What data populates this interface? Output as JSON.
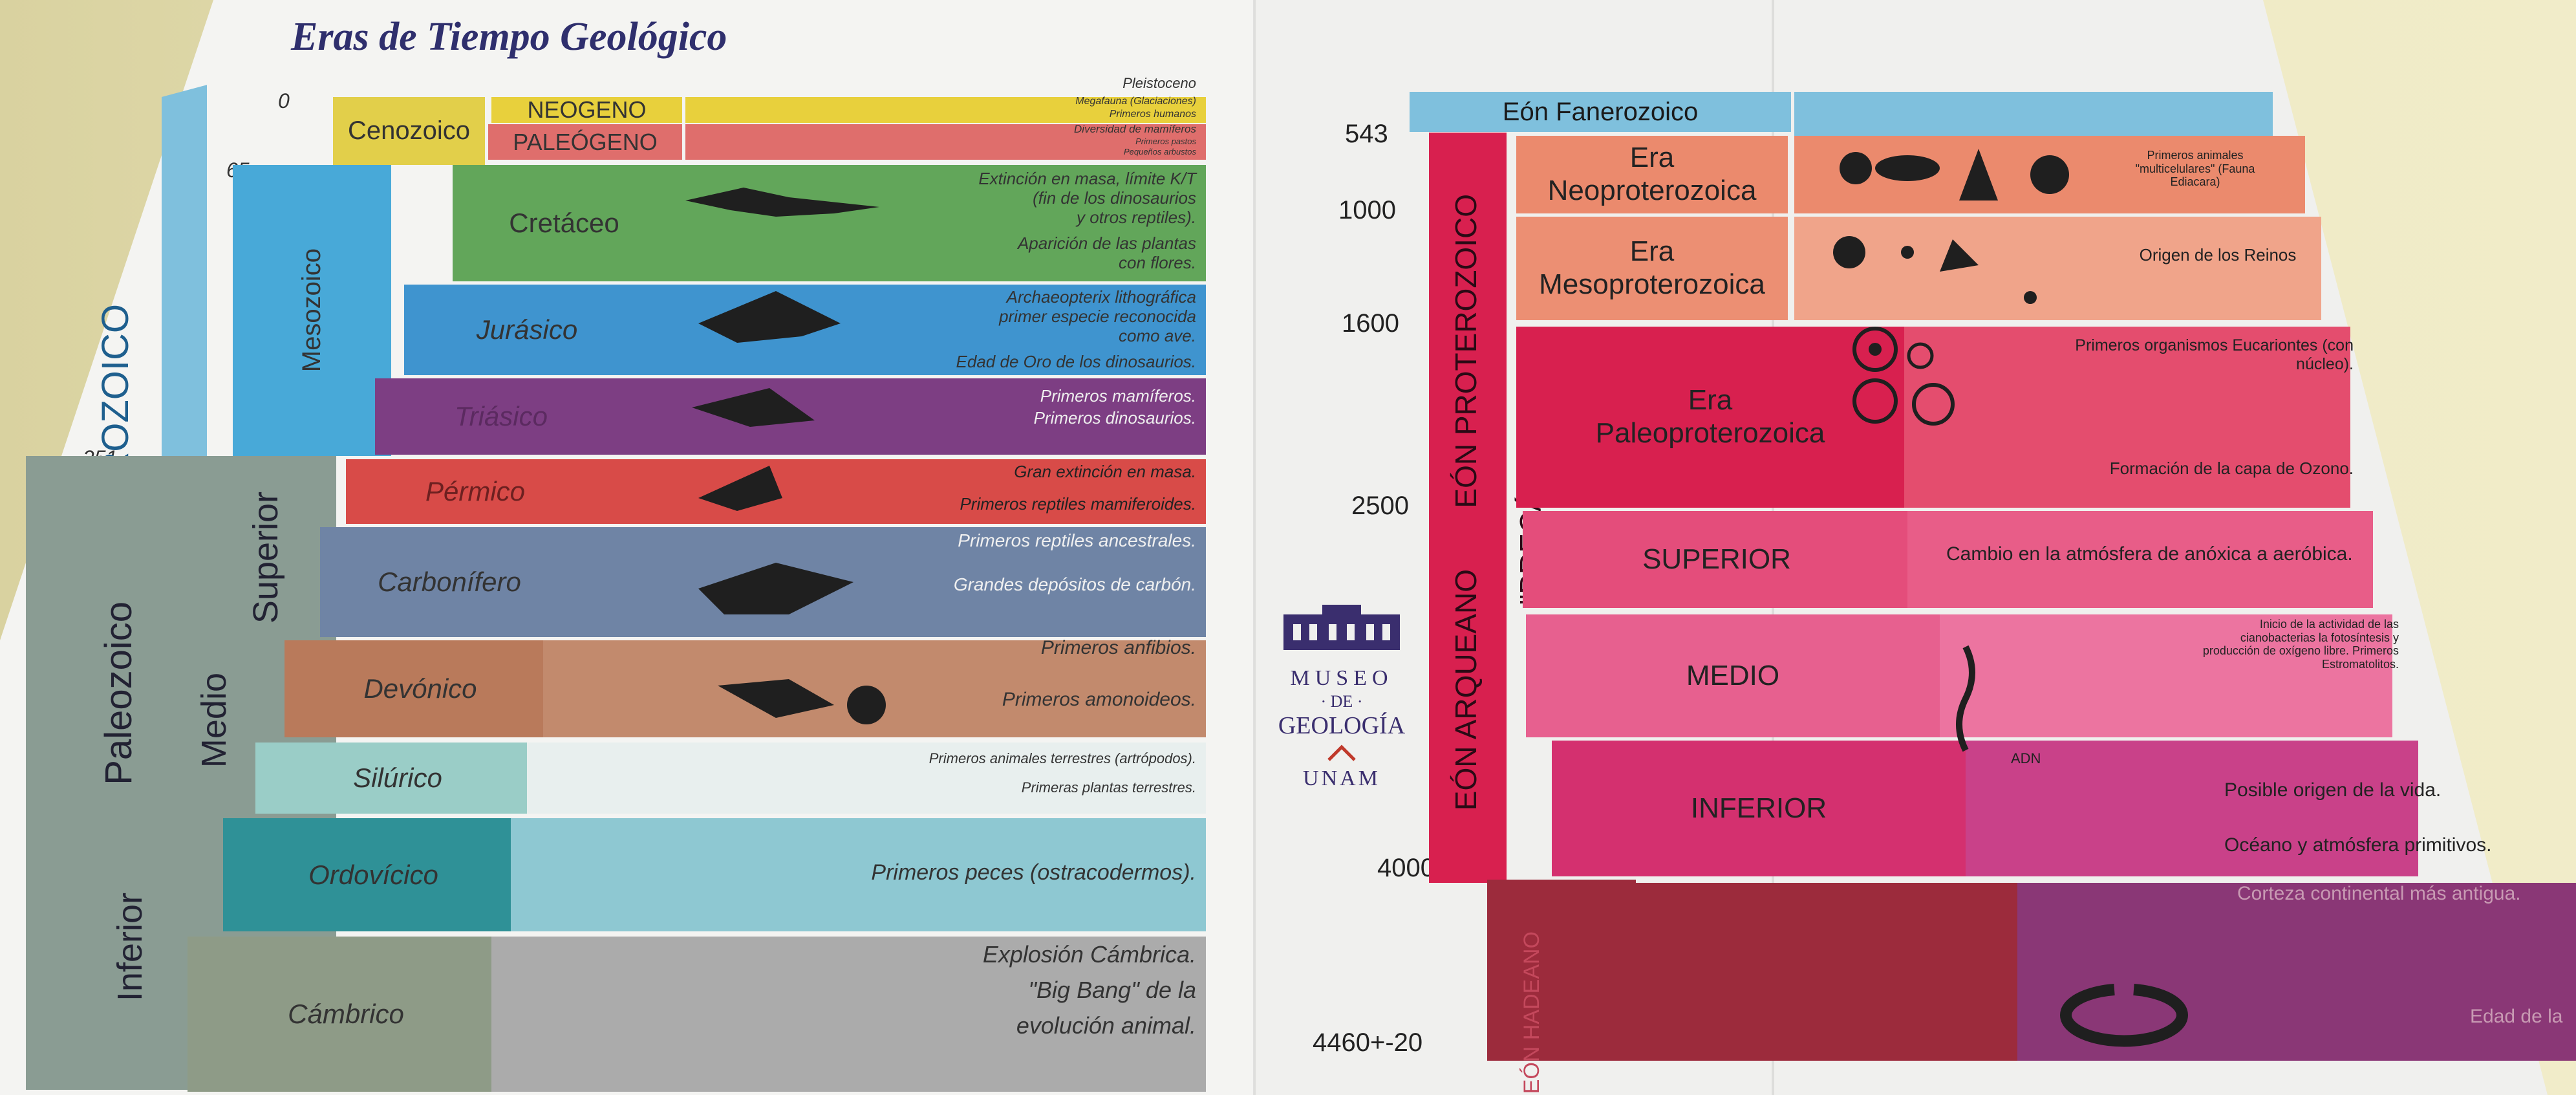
{
  "title": "Eras de Tiempo Geológico",
  "left_scale": {
    "y0": "0",
    "y65": "65",
    "y251": "251"
  },
  "eons": {
    "fanerozoico_vertical": "EÓN FANEROZOICO",
    "fanerozoico_header": "Eón Fanerozoico"
  },
  "eras": {
    "cenozoico": "Cenozoico",
    "mesozoico": "Mesozoico",
    "paleozoico": "Paleozoico"
  },
  "subdivisions": {
    "superior": "Superior",
    "medio": "Medio",
    "inferior": "Inferior"
  },
  "periods": [
    {
      "name": "NEOGENO",
      "notes": [
        "Pleistoceno",
        "Megafauna (Glaciaciones)",
        "Primeros humanos"
      ]
    },
    {
      "name": "PALEÓGENO",
      "notes": [
        "Diversidad de mamíferos",
        "Primeros pastos",
        "Pequeños arbustos"
      ]
    },
    {
      "name": "Cretáceo",
      "notes": [
        "Extinción en masa, límite K/T",
        "(fin de los dinosaurios",
        "y otros reptiles).",
        "Aparición de las plantas",
        "con flores."
      ]
    },
    {
      "name": "Jurásico",
      "notes": [
        "Archaeopterix lithográfica",
        "primer especie reconocida",
        "como ave.",
        "Edad de Oro de los dinosaurios."
      ]
    },
    {
      "name": "Triásico",
      "notes": [
        "Primeros mamíferos.",
        "Primeros dinosaurios."
      ]
    },
    {
      "name": "Pérmico",
      "notes": [
        "Gran extinción en masa.",
        "Primeros reptiles mamiferoides."
      ]
    },
    {
      "name": "Carbonífero",
      "notes": [
        "Primeros reptiles ancestrales.",
        "Grandes depósitos de carbón."
      ]
    },
    {
      "name": "Devónico",
      "notes": [
        "Primeros anfibios.",
        "Primeros amonoideos."
      ]
    },
    {
      "name": "Silúrico",
      "notes": [
        "Primeros animales terrestres (artrópodos).",
        "Primeras plantas terrestres."
      ]
    },
    {
      "name": "Ordovícico",
      "notes": [
        "Primeros peces (ostracodermos)."
      ]
    },
    {
      "name": "Cámbrico",
      "notes": [
        "Explosión Cámbrica.",
        "\"Big Bang\" de la",
        "evolución animal."
      ]
    }
  ],
  "museum": {
    "line1": "MUSEO",
    "line2": "· DE ·",
    "line3": "GEOLOGÍA",
    "line4": "UNAM"
  },
  "right_scale": [
    "543",
    "1000",
    "1600",
    "2500",
    "4000",
    "4460+-20"
  ],
  "precambrian": {
    "proterozoico": "EÓN PROTEROZOICO",
    "precambrico": "\"PRECÁMBRICO\"",
    "arqueano": "EÓN ARQUEANO",
    "hadeano": "EÓN HADEANO"
  },
  "right_eras": [
    {
      "name": "Era\nNeoproterozoica",
      "note": "Primeros animales \"multicelulares\" (Fauna Ediacara)"
    },
    {
      "name": "Era\nMesoproterozoica",
      "note": "Origen de los Reinos"
    },
    {
      "name": "Era\nPaleoproterozoica",
      "note1": "Primeros organismos Eucariontes (con núcleo).",
      "note2": "Formación de la capa de Ozono."
    },
    {
      "name": "SUPERIOR",
      "note": "Cambio en la atmósfera de anóxica a aeróbica."
    },
    {
      "name": "MEDIO",
      "note": "Inicio de la actividad de las cianobacterias la fotosíntesis y producción de oxígeno libre. Primeros Estromatolitos."
    },
    {
      "name": "INFERIOR",
      "note1": "Posible origen de la vida.",
      "note2": "Océano y atmósfera primitivos.",
      "adn": "ADN"
    },
    {
      "name": "",
      "note1": "Corteza continental más antigua.",
      "note2": "Edad de la"
    }
  ],
  "colors": {
    "cenozoico": "#e2cf4a",
    "mesozoico": "#48a9d8",
    "paleozoico": "#8a9c93",
    "neogeno": "#e8d03c",
    "paleogeno": "#df6e6c",
    "cretaceo": "#62a65a",
    "jurasico": "#3f94cf",
    "triasico": "#7d3e83",
    "permico": "#d84b48",
    "carbonifero": "#6f84a5",
    "devonico": "#b97a5b",
    "silurico": "#9acdc7",
    "ordovicico": "#2f9197",
    "cambrico": "#8e9b87"
  }
}
